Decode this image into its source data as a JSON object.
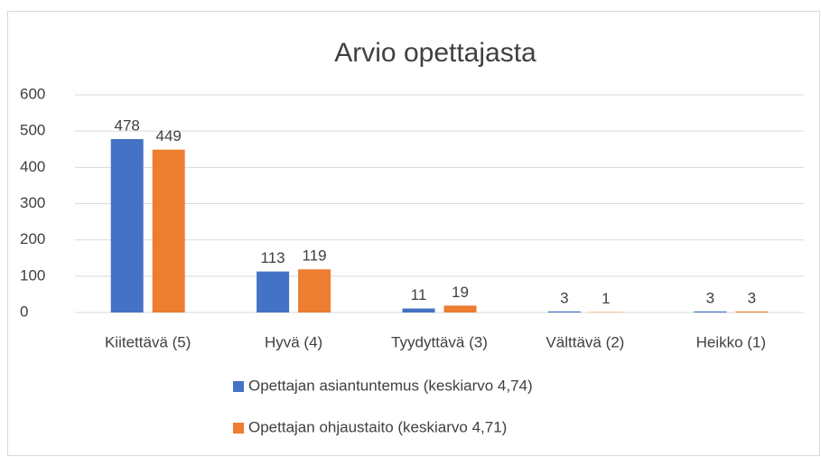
{
  "chart_data": {
    "type": "bar",
    "title": "Arvio opettajasta",
    "categories": [
      "Kiitettävä (5)",
      "Hyvä (4)",
      "Tyydyttävä (3)",
      "Välttävä (2)",
      "Heikko (1)"
    ],
    "series": [
      {
        "name": "Opettajan asiantuntemus (keskiarvo 4,74)",
        "color": "#4472c4",
        "values": [
          478,
          113,
          11,
          3,
          3
        ]
      },
      {
        "name": "Opettajan ohjaustaito (keskiarvo 4,71)",
        "color": "#ed7d31",
        "values": [
          449,
          119,
          19,
          1,
          3
        ]
      }
    ],
    "ylim": [
      0,
      600
    ],
    "yticks": [
      0,
      100,
      200,
      300,
      400,
      500,
      600
    ],
    "grid": true,
    "legend": "bottom"
  }
}
